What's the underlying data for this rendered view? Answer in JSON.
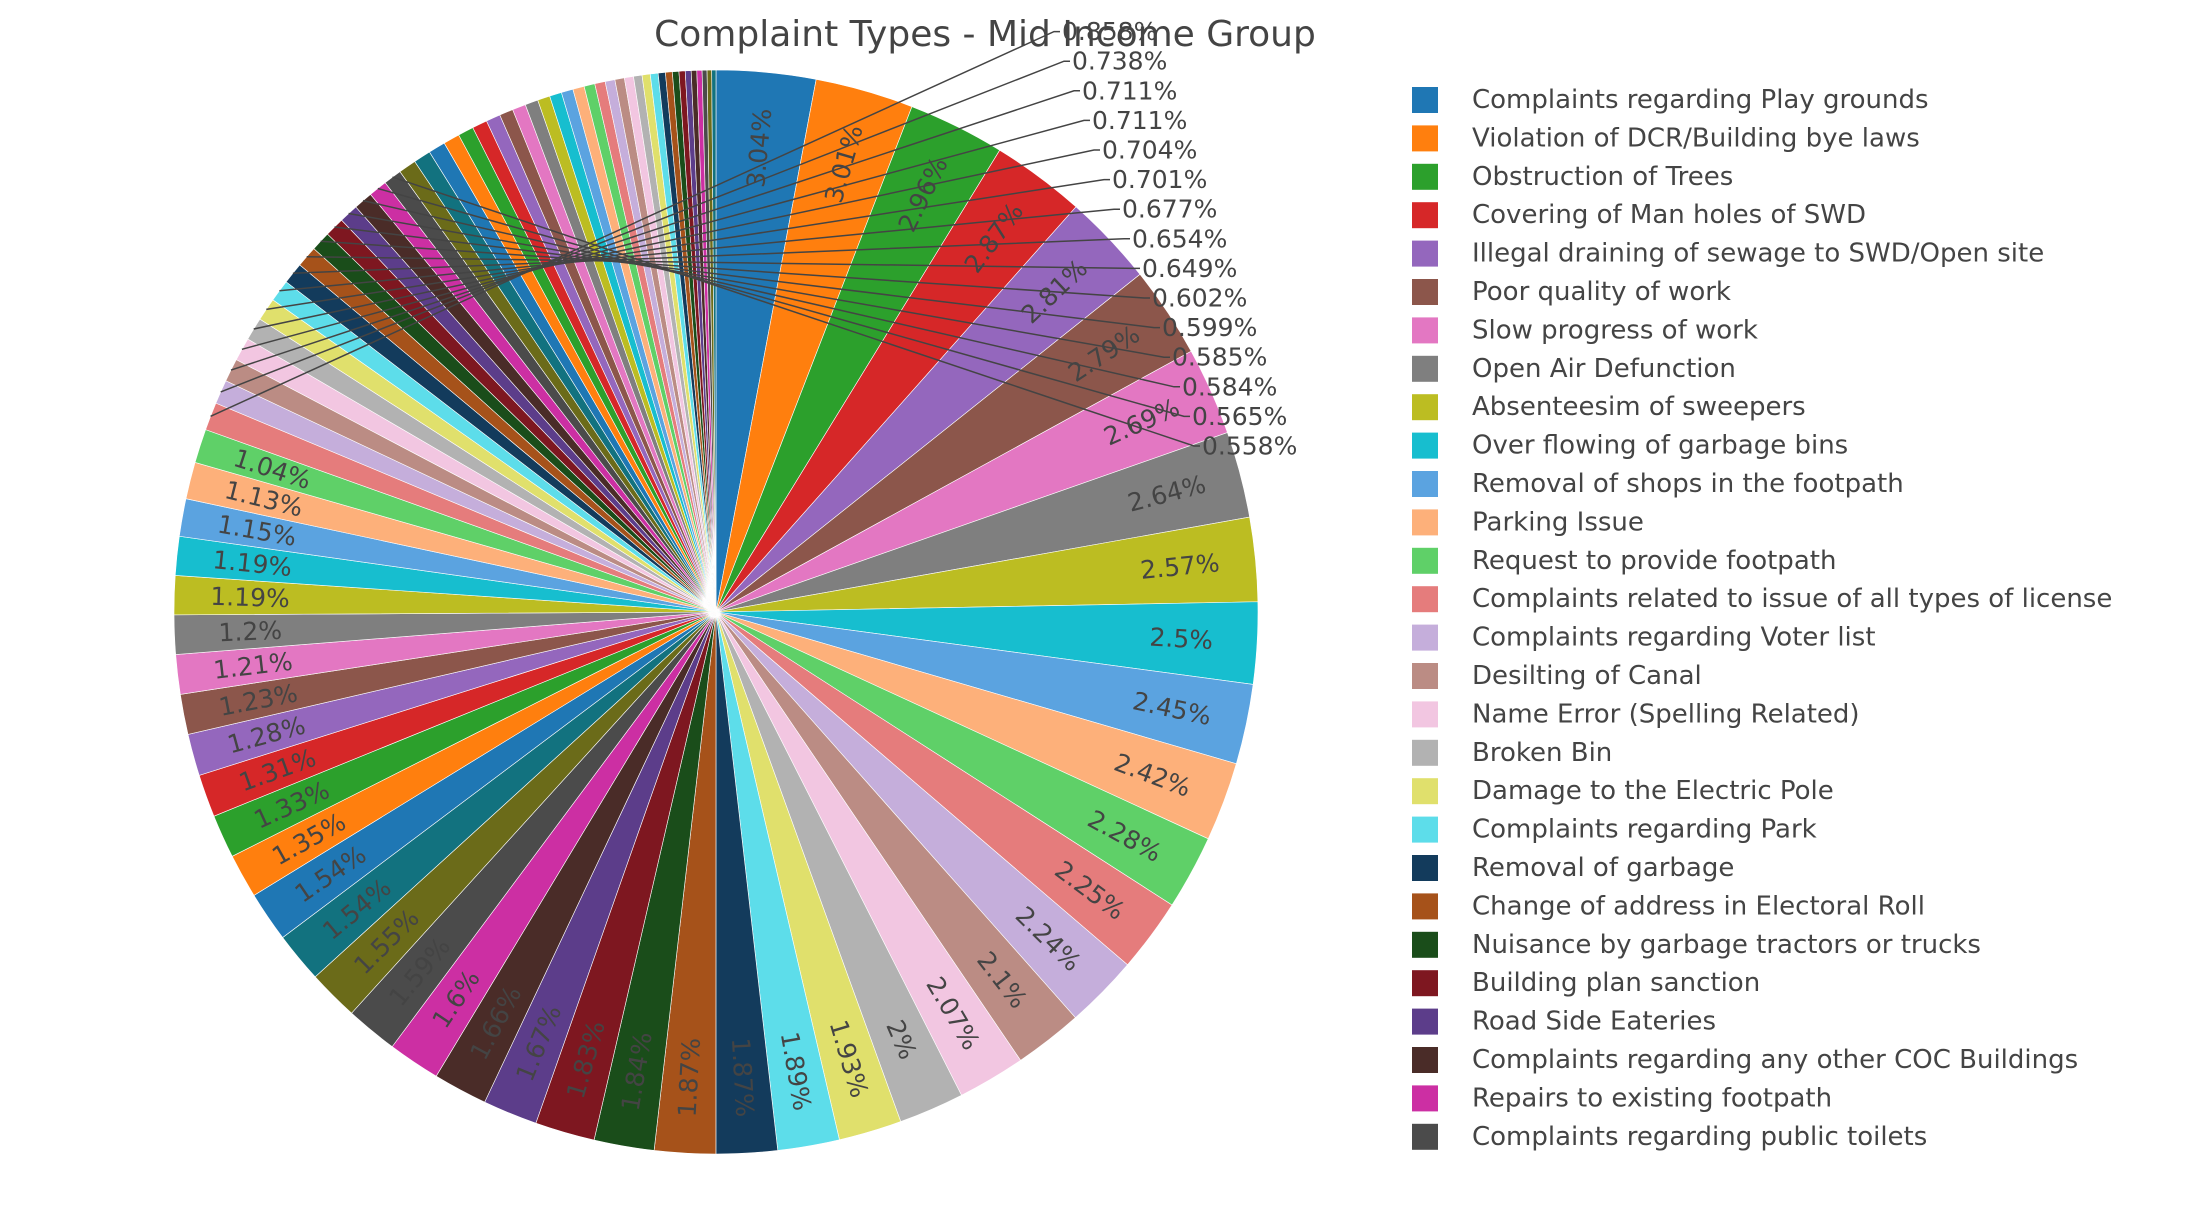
{
  "chart_data": {
    "type": "pie",
    "title": "Complaint Types - Mid Income Group",
    "direction": "clockwise",
    "legend_position": "right",
    "slices": [
      {
        "label": "Complaints regarding Play grounds",
        "value": 3.04,
        "color": "#1f77b4"
      },
      {
        "label": "Violation of DCR/Building bye laws",
        "value": 3.01,
        "color": "#ff7f0e"
      },
      {
        "label": "Obstruction of Trees",
        "value": 2.96,
        "color": "#2ca02c"
      },
      {
        "label": "Covering of Man holes of SWD",
        "value": 2.87,
        "color": "#d62728"
      },
      {
        "label": "Illegal draining of sewage to SWD/Open site",
        "value": 2.81,
        "color": "#9467bd"
      },
      {
        "label": "Poor quality of work",
        "value": 2.79,
        "color": "#8c564b"
      },
      {
        "label": "Slow progress of work",
        "value": 2.69,
        "color": "#e377c2"
      },
      {
        "label": "Open Air Defunction",
        "value": 2.64,
        "color": "#7f7f7f"
      },
      {
        "label": "Absenteesim of sweepers",
        "value": 2.57,
        "color": "#bcbd22"
      },
      {
        "label": "Over flowing of garbage bins",
        "value": 2.5,
        "color": "#17becf"
      },
      {
        "label": "Removal of shops in the footpath",
        "value": 2.45,
        "color": "#5ba3e0"
      },
      {
        "label": "Parking Issue",
        "value": 2.42,
        "color": "#fdb07a"
      },
      {
        "label": "Request to provide footpath",
        "value": 2.28,
        "color": "#5fd068"
      },
      {
        "label": "Complaints related to issue of all types of license",
        "value": 2.25,
        "color": "#e57c7c"
      },
      {
        "label": "Complaints regarding Voter list",
        "value": 2.24,
        "color": "#c5aedb"
      },
      {
        "label": "Desilting of Canal",
        "value": 2.1,
        "color": "#bb8c84"
      },
      {
        "label": "Name Error (Spelling Related)",
        "value": 2.07,
        "color": "#f2c6e1"
      },
      {
        "label": "Broken Bin",
        "value": 2.0,
        "color": "#b2b2b2"
      },
      {
        "label": "Damage to the  Electric Pole",
        "value": 1.93,
        "color": "#e0e06c"
      },
      {
        "label": "Complaints regarding Park",
        "value": 1.89,
        "color": "#5dddea"
      },
      {
        "label": "Removal of garbage",
        "value": 1.87,
        "color": "#133b5c"
      },
      {
        "label": "Change of address in Electoral Roll",
        "value": 1.87,
        "color": "#a6521a"
      },
      {
        "label": "Nuisance by garbage tractors or trucks",
        "value": 1.84,
        "color": "#1a4d1a"
      },
      {
        "label": "Building plan sanction",
        "value": 1.83,
        "color": "#7e1720"
      },
      {
        "label": "Road Side Eateries",
        "value": 1.67,
        "color": "#5c3d8a"
      },
      {
        "label": "Complaints regarding any other COC Buildings",
        "value": 1.66,
        "color": "#4a2c28"
      },
      {
        "label": "Repairs to existing footpath",
        "value": 1.6,
        "color": "#cc2fa3"
      },
      {
        "label": "Complaints regarding public toilets",
        "value": 1.59,
        "color": "#4b4b4b"
      },
      {
        "label": "",
        "value": 1.55,
        "color": "#6b6b19"
      },
      {
        "label": "",
        "value": 1.54,
        "color": "#12727f"
      },
      {
        "label": "",
        "value": 1.54,
        "color": "#1f77b4"
      },
      {
        "label": "",
        "value": 1.35,
        "color": "#ff7f0e"
      },
      {
        "label": "",
        "value": 1.33,
        "color": "#2ca02c"
      },
      {
        "label": "",
        "value": 1.31,
        "color": "#d62728"
      },
      {
        "label": "",
        "value": 1.28,
        "color": "#9467bd"
      },
      {
        "label": "",
        "value": 1.23,
        "color": "#8c564b"
      },
      {
        "label": "",
        "value": 1.21,
        "color": "#e377c2"
      },
      {
        "label": "",
        "value": 1.2,
        "color": "#7f7f7f"
      },
      {
        "label": "",
        "value": 1.19,
        "color": "#bcbd22"
      },
      {
        "label": "",
        "value": 1.19,
        "color": "#17becf"
      },
      {
        "label": "",
        "value": 1.15,
        "color": "#5ba3e0"
      },
      {
        "label": "",
        "value": 1.13,
        "color": "#fdb07a"
      },
      {
        "label": "",
        "value": 1.04,
        "color": "#5fd068"
      },
      {
        "label": "",
        "value": 0.858,
        "color": "#e57c7c"
      },
      {
        "label": "",
        "value": 0.738,
        "color": "#c5aedb"
      },
      {
        "label": "",
        "value": 0.711,
        "color": "#bb8c84"
      },
      {
        "label": "",
        "value": 0.711,
        "color": "#f2c6e1"
      },
      {
        "label": "",
        "value": 0.704,
        "color": "#b2b2b2"
      },
      {
        "label": "",
        "value": 0.701,
        "color": "#e0e06c"
      },
      {
        "label": "",
        "value": 0.677,
        "color": "#5dddea"
      },
      {
        "label": "",
        "value": 0.654,
        "color": "#133b5c"
      },
      {
        "label": "",
        "value": 0.649,
        "color": "#a6521a"
      },
      {
        "label": "",
        "value": 0.602,
        "color": "#1a4d1a"
      },
      {
        "label": "",
        "value": 0.599,
        "color": "#7e1720"
      },
      {
        "label": "",
        "value": 0.585,
        "color": "#5c3d8a"
      },
      {
        "label": "",
        "value": 0.584,
        "color": "#4a2c28"
      },
      {
        "label": "",
        "value": 0.565,
        "color": "#cc2fa3"
      },
      {
        "label": "",
        "value": 0.558,
        "color": "#4b4b4b"
      },
      {
        "label": "",
        "value": 0.54,
        "color": "#6b6b19"
      },
      {
        "label": "",
        "value": 0.53,
        "color": "#12727f"
      },
      {
        "label": "",
        "value": 0.52,
        "color": "#1f77b4"
      },
      {
        "label": "",
        "value": 0.5,
        "color": "#ff7f0e"
      },
      {
        "label": "",
        "value": 0.48,
        "color": "#2ca02c"
      },
      {
        "label": "",
        "value": 0.46,
        "color": "#d62728"
      },
      {
        "label": "",
        "value": 0.44,
        "color": "#9467bd"
      },
      {
        "label": "",
        "value": 0.42,
        "color": "#8c564b"
      },
      {
        "label": "",
        "value": 0.41,
        "color": "#e377c2"
      },
      {
        "label": "",
        "value": 0.4,
        "color": "#7f7f7f"
      },
      {
        "label": "",
        "value": 0.38,
        "color": "#bcbd22"
      },
      {
        "label": "",
        "value": 0.37,
        "color": "#17becf"
      },
      {
        "label": "",
        "value": 0.36,
        "color": "#5ba3e0"
      },
      {
        "label": "",
        "value": 0.35,
        "color": "#fdb07a"
      },
      {
        "label": "",
        "value": 0.33,
        "color": "#5fd068"
      },
      {
        "label": "",
        "value": 0.32,
        "color": "#e57c7c"
      },
      {
        "label": "",
        "value": 0.3,
        "color": "#c5aedb"
      },
      {
        "label": "",
        "value": 0.29,
        "color": "#bb8c84"
      },
      {
        "label": "",
        "value": 0.28,
        "color": "#f2c6e1"
      },
      {
        "label": "",
        "value": 0.26,
        "color": "#b2b2b2"
      },
      {
        "label": "",
        "value": 0.25,
        "color": "#e0e06c"
      },
      {
        "label": "",
        "value": 0.24,
        "color": "#5dddea"
      },
      {
        "label": "",
        "value": 0.22,
        "color": "#133b5c"
      },
      {
        "label": "",
        "value": 0.21,
        "color": "#a6521a"
      },
      {
        "label": "",
        "value": 0.2,
        "color": "#1a4d1a"
      },
      {
        "label": "",
        "value": 0.19,
        "color": "#7e1720"
      },
      {
        "label": "",
        "value": 0.18,
        "color": "#5c3d8a"
      },
      {
        "label": "",
        "value": 0.17,
        "color": "#4a2c28"
      },
      {
        "label": "",
        "value": 0.16,
        "color": "#cc2fa3"
      },
      {
        "label": "",
        "value": 0.15,
        "color": "#4b4b4b"
      },
      {
        "label": "",
        "value": 0.14,
        "color": "#6b6b19"
      },
      {
        "label": "",
        "value": 0.13,
        "color": "#12727f"
      }
    ]
  }
}
